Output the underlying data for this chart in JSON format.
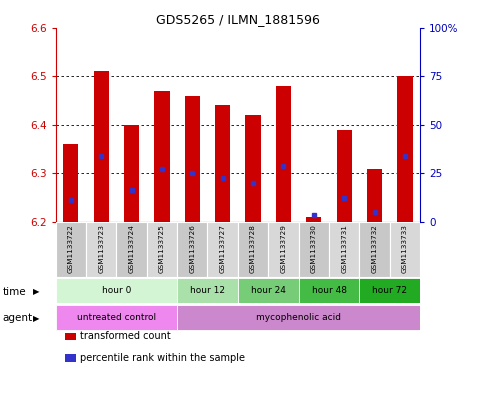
{
  "title": "GDS5265 / ILMN_1881596",
  "samples": [
    "GSM1133722",
    "GSM1133723",
    "GSM1133724",
    "GSM1133725",
    "GSM1133726",
    "GSM1133727",
    "GSM1133728",
    "GSM1133729",
    "GSM1133730",
    "GSM1133731",
    "GSM1133732",
    "GSM1133733"
  ],
  "bar_top": [
    6.36,
    6.51,
    6.4,
    6.47,
    6.46,
    6.44,
    6.42,
    6.48,
    6.21,
    6.39,
    6.31,
    6.5
  ],
  "bar_bottom": 6.2,
  "blue_marker": [
    6.245,
    6.335,
    6.265,
    6.31,
    6.3,
    6.29,
    6.28,
    6.315,
    6.215,
    6.25,
    6.22,
    6.335
  ],
  "ylim": [
    6.2,
    6.6
  ],
  "y2lim": [
    0,
    100
  ],
  "yticks": [
    6.2,
    6.3,
    6.4,
    6.5,
    6.6
  ],
  "y2ticks": [
    0,
    25,
    50,
    75,
    100
  ],
  "y2labels": [
    "0",
    "25",
    "50",
    "75",
    "100%"
  ],
  "bar_color": "#cc0000",
  "blue_color": "#3333cc",
  "time_groups": [
    {
      "label": "hour 0",
      "start": 0,
      "end": 3,
      "color": "#d4f5d4"
    },
    {
      "label": "hour 12",
      "start": 4,
      "end": 5,
      "color": "#aae0aa"
    },
    {
      "label": "hour 24",
      "start": 6,
      "end": 7,
      "color": "#77cc77"
    },
    {
      "label": "hour 48",
      "start": 8,
      "end": 9,
      "color": "#44bb44"
    },
    {
      "label": "hour 72",
      "start": 10,
      "end": 11,
      "color": "#22aa22"
    }
  ],
  "agent_groups": [
    {
      "label": "untreated control",
      "start": 0,
      "end": 3,
      "color": "#ee88ee"
    },
    {
      "label": "mycophenolic acid",
      "start": 4,
      "end": 11,
      "color": "#cc88cc"
    }
  ],
  "sample_bg_colors": [
    "#c8c8c8",
    "#d8d8d8"
  ],
  "legend_red_label": "transformed count",
  "legend_blue_label": "percentile rank within the sample",
  "left_label_color": "#cc0000",
  "right_label_color": "#0000bb",
  "bar_width": 0.5
}
